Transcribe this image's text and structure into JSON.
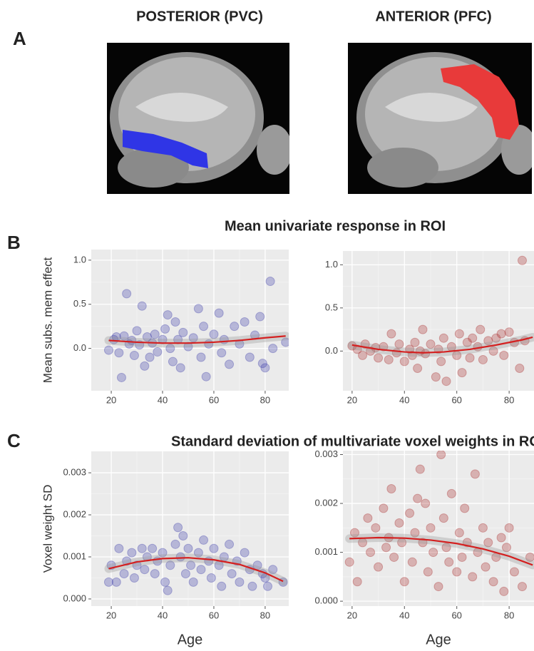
{
  "figure": {
    "panel_labels": [
      "A",
      "B",
      "C"
    ],
    "image_titles": [
      "POSTERIOR (PVC)",
      "ANTERIOR (PFC)"
    ],
    "row_titles": [
      "Mean univariate response in ROI",
      "Standard deviation of multivariate voxel weights in ROI"
    ]
  },
  "chart_data": [
    {
      "type": "scatter",
      "y_label": "Mean subs. mem effect",
      "xlim": [
        12.2,
        89.2
      ],
      "ylim": [
        -0.48,
        1.12
      ],
      "xticks": [
        20,
        40,
        60,
        80
      ],
      "yticks": [
        {
          "value": 0,
          "label": "0.0"
        },
        0.5,
        {
          "value": 1,
          "label": "1.0"
        }
      ],
      "grid": true,
      "series": [
        {
          "color": "#3b3ba8",
          "x": [
            19,
            21,
            22,
            23,
            24,
            25,
            26,
            27,
            28,
            29,
            30,
            31,
            32,
            33,
            34,
            35,
            36,
            37,
            38,
            40,
            41,
            42,
            43,
            44,
            45,
            46,
            47,
            48,
            50,
            52,
            54,
            55,
            56,
            57,
            58,
            60,
            62,
            63,
            64,
            66,
            68,
            70,
            72,
            74,
            76,
            78,
            79,
            80,
            82,
            83,
            88
          ],
          "values": [
            -0.02,
            0.1,
            0.13,
            -0.05,
            -0.33,
            0.14,
            0.62,
            0.05,
            0.09,
            -0.08,
            0.2,
            0.04,
            0.48,
            -0.2,
            0.13,
            -0.1,
            0.06,
            0.16,
            -0.04,
            0.1,
            0.22,
            0.38,
            0.0,
            -0.15,
            0.3,
            0.1,
            -0.22,
            0.18,
            0.02,
            0.12,
            0.45,
            -0.1,
            0.25,
            -0.32,
            0.05,
            0.16,
            0.4,
            -0.05,
            0.1,
            -0.18,
            0.25,
            0.05,
            0.3,
            -0.1,
            0.15,
            0.36,
            -0.17,
            -0.22,
            0.76,
            0.0,
            0.07
          ]
        }
      ],
      "fit": {
        "color": "#d42020",
        "x": [
          19,
          30,
          40,
          50,
          60,
          70,
          80,
          88
        ],
        "values": [
          0.09,
          0.07,
          0.06,
          0.06,
          0.07,
          0.09,
          0.12,
          0.14
        ]
      }
    },
    {
      "type": "scatter",
      "xlim": [
        16.5,
        89.5
      ],
      "ylim": [
        -0.46,
        1.16
      ],
      "xticks": [
        20,
        40,
        60,
        80
      ],
      "yticks": [
        {
          "value": 0,
          "label": "0.0"
        },
        0.5,
        {
          "value": 1,
          "label": "1.0"
        }
      ],
      "grid": true,
      "series": [
        {
          "color": "#a82a2a",
          "x": [
            20,
            22,
            24,
            25,
            27,
            29,
            30,
            32,
            34,
            35,
            37,
            38,
            40,
            42,
            43,
            44,
            45,
            46,
            47,
            48,
            50,
            52,
            53,
            54,
            55,
            56,
            58,
            60,
            61,
            62,
            64,
            65,
            66,
            68,
            69,
            70,
            72,
            74,
            75,
            77,
            78,
            80,
            82,
            84,
            85,
            86
          ],
          "values": [
            0.06,
            0.02,
            -0.05,
            0.08,
            0.0,
            0.04,
            -0.08,
            0.05,
            -0.1,
            0.2,
            -0.02,
            0.08,
            -0.12,
            0.02,
            -0.05,
            0.1,
            -0.2,
            0.0,
            0.25,
            -0.03,
            0.08,
            -0.3,
            0.02,
            -0.12,
            0.15,
            -0.35,
            0.05,
            -0.05,
            0.2,
            -0.25,
            0.1,
            -0.08,
            0.15,
            0.05,
            0.25,
            -0.1,
            0.12,
            0.0,
            0.15,
            0.2,
            -0.05,
            0.22,
            0.1,
            -0.2,
            1.05,
            0.12
          ]
        }
      ],
      "fit": {
        "color": "#d42020",
        "x": [
          20,
          30,
          40,
          47,
          55,
          65,
          75,
          85,
          89
        ],
        "values": [
          0.07,
          0.02,
          -0.01,
          -0.02,
          -0.01,
          0.02,
          0.07,
          0.13,
          0.16
        ]
      }
    },
    {
      "type": "scatter",
      "y_label": "Voxel weight SD",
      "x_label": "Age",
      "xlim": [
        12.2,
        89.2
      ],
      "ylim": [
        -0.00017,
        0.00351
      ],
      "xticks": [
        20,
        40,
        60,
        80
      ],
      "yticks": [
        {
          "value": 0,
          "label": "0.000"
        },
        {
          "value": 0.001,
          "label": "0.001"
        },
        {
          "value": 0.002,
          "label": "0.002"
        },
        {
          "value": 0.003,
          "label": "0.003"
        }
      ],
      "grid": true,
      "series": [
        {
          "color": "#3b3ba8",
          "x": [
            19,
            20,
            22,
            23,
            25,
            26,
            28,
            29,
            30,
            32,
            33,
            34,
            36,
            37,
            38,
            40,
            41,
            42,
            43,
            45,
            46,
            47,
            48,
            49,
            50,
            51,
            52,
            54,
            55,
            56,
            58,
            59,
            60,
            62,
            63,
            64,
            66,
            67,
            69,
            70,
            72,
            74,
            75,
            77,
            79,
            80,
            81,
            83,
            87
          ],
          "values": [
            0.0004,
            0.0008,
            0.0004,
            0.0012,
            0.0006,
            0.0009,
            0.0011,
            0.0005,
            0.0008,
            0.0012,
            0.0007,
            0.001,
            0.0012,
            0.0006,
            0.0009,
            0.0011,
            0.0004,
            0.0002,
            0.0008,
            0.0013,
            0.0017,
            0.001,
            0.0015,
            0.0006,
            0.0012,
            0.0008,
            0.0004,
            0.0011,
            0.0007,
            0.0014,
            0.0009,
            0.0005,
            0.0012,
            0.0008,
            0.0003,
            0.001,
            0.0013,
            0.0006,
            0.0009,
            0.0004,
            0.0011,
            0.0007,
            0.0003,
            0.0008,
            0.0006,
            0.0005,
            0.0003,
            0.0007,
            0.0004
          ]
        }
      ],
      "fit": {
        "color": "#d42020",
        "x": [
          19,
          30,
          40,
          50,
          60,
          70,
          80,
          87
        ],
        "values": [
          0.00072,
          0.00088,
          0.00096,
          0.00098,
          0.00093,
          0.00082,
          0.00062,
          0.00042
        ]
      }
    },
    {
      "type": "scatter",
      "x_label": "Age",
      "xlim": [
        16.5,
        89.5
      ],
      "ylim": [
        -0.0001,
        0.00308
      ],
      "xticks": [
        20,
        40,
        60,
        80
      ],
      "yticks": [
        {
          "value": 0,
          "label": "0.000"
        },
        {
          "value": 0.001,
          "label": "0.001"
        },
        {
          "value": 0.002,
          "label": "0.002"
        },
        {
          "value": 0.003,
          "label": "0.003"
        }
      ],
      "grid": true,
      "series": [
        {
          "color": "#a82a2a",
          "x": [
            19,
            21,
            22,
            24,
            26,
            27,
            29,
            30,
            32,
            33,
            34,
            35,
            36,
            38,
            39,
            40,
            42,
            43,
            44,
            45,
            46,
            47,
            48,
            49,
            50,
            51,
            53,
            54,
            55,
            56,
            57,
            58,
            60,
            61,
            62,
            63,
            64,
            66,
            67,
            68,
            70,
            71,
            72,
            74,
            75,
            77,
            78,
            79,
            80,
            82,
            85,
            88
          ],
          "values": [
            0.0008,
            0.0014,
            0.0004,
            0.0012,
            0.0017,
            0.001,
            0.0015,
            0.0007,
            0.0019,
            0.0011,
            0.0013,
            0.0023,
            0.0009,
            0.0016,
            0.0012,
            0.0004,
            0.0018,
            0.0008,
            0.0014,
            0.0021,
            0.0027,
            0.0012,
            0.002,
            0.0006,
            0.0015,
            0.001,
            0.0003,
            0.003,
            0.0017,
            0.0011,
            0.0008,
            0.0022,
            0.0006,
            0.0014,
            0.0009,
            0.0019,
            0.0012,
            0.0005,
            0.0026,
            0.001,
            0.0015,
            0.0007,
            0.0012,
            0.0004,
            0.0009,
            0.0013,
            0.0002,
            0.0011,
            0.0015,
            0.0006,
            0.0003,
            0.0009
          ]
        }
      ],
      "fit": {
        "color": "#d42020",
        "x": [
          19,
          30,
          40,
          50,
          60,
          70,
          80,
          89
        ],
        "values": [
          0.00128,
          0.0013,
          0.00129,
          0.00125,
          0.00118,
          0.00107,
          0.00092,
          0.00074
        ]
      }
    }
  ]
}
